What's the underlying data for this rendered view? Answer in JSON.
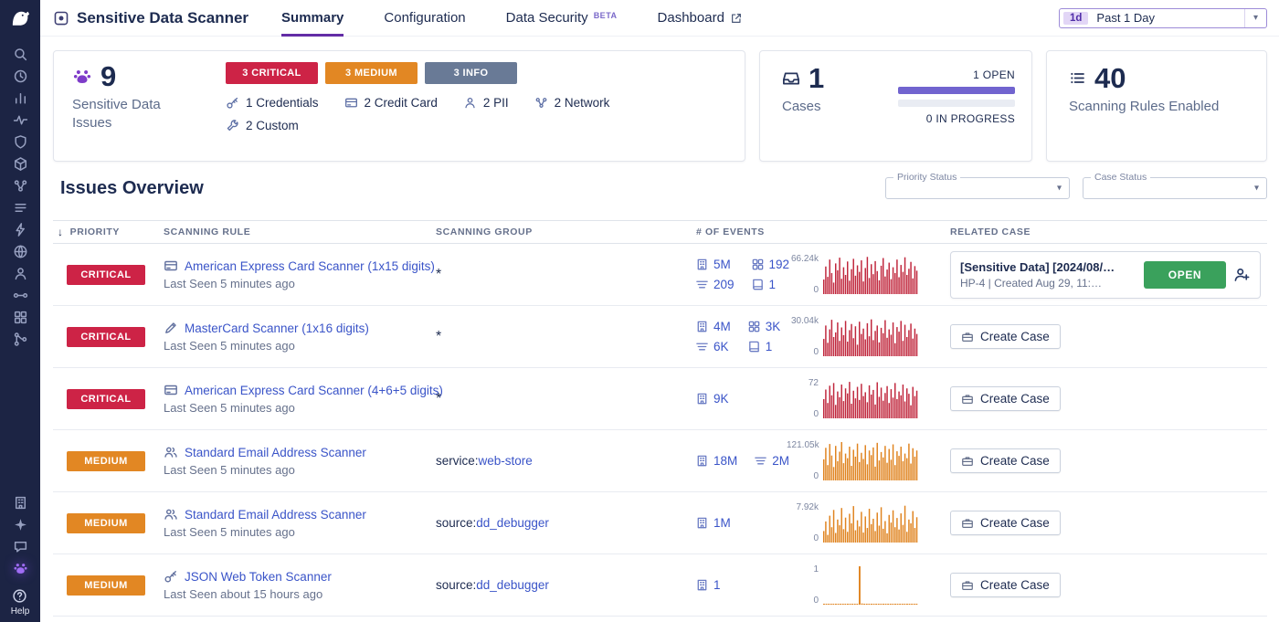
{
  "colors": {
    "brand_purple": "#632ca6",
    "sidebar_bg": "#1c2444",
    "critical": "#cd2346",
    "medium": "#e28723",
    "info": "#697a96",
    "link_blue": "#3a54c8",
    "open_green": "#3aa15c",
    "case_open_bar": "#7164cf"
  },
  "sidebar": {
    "main_icons": [
      {
        "name": "search",
        "glyph": "search"
      },
      {
        "name": "history",
        "glyph": "clock"
      },
      {
        "name": "metrics",
        "glyph": "bars"
      },
      {
        "name": "watchdog",
        "glyph": "pulse"
      },
      {
        "name": "security",
        "glyph": "shield"
      },
      {
        "name": "infrastructure",
        "glyph": "cube"
      },
      {
        "name": "network",
        "glyph": "dots"
      },
      {
        "name": "logs",
        "glyph": "lines"
      },
      {
        "name": "apm",
        "glyph": "bolt"
      },
      {
        "name": "synthetics",
        "glyph": "globe"
      },
      {
        "name": "rum",
        "glyph": "person"
      },
      {
        "name": "ci-pipelines",
        "glyph": "pipeline"
      },
      {
        "name": "integrations",
        "glyph": "grid"
      },
      {
        "name": "workflows",
        "glyph": "branch"
      }
    ],
    "bottom_icons": [
      {
        "name": "organization",
        "glyph": "building"
      },
      {
        "name": "bits-ai",
        "glyph": "sparkle"
      },
      {
        "name": "support-chat",
        "glyph": "chat"
      },
      {
        "name": "sensitive-data-scanner",
        "glyph": "paw",
        "active": true
      }
    ],
    "help_label": "Help"
  },
  "topnav": {
    "app_title": "Sensitive Data Scanner",
    "tabs": [
      {
        "label": "Summary"
      },
      {
        "label": "Configuration"
      },
      {
        "label": "Data Security",
        "badge": "BETA"
      },
      {
        "label": "Dashboard"
      }
    ],
    "time_picker": {
      "shortcut": "1d",
      "label": "Past 1 Day"
    }
  },
  "cards": {
    "issues": {
      "count": "9",
      "label": "Sensitive Data Issues",
      "severities": [
        {
          "label": "3 CRITICAL",
          "color": "#cd2346"
        },
        {
          "label": "3 MEDIUM",
          "color": "#e28723"
        },
        {
          "label": "3 INFO",
          "color": "#697a96"
        }
      ],
      "categories": [
        {
          "icon": "key",
          "label": "1 Credentials"
        },
        {
          "icon": "creditcard",
          "label": "2 Credit Card"
        },
        {
          "icon": "person",
          "label": "2 PII"
        },
        {
          "icon": "dots",
          "label": "2 Network"
        },
        {
          "icon": "wrench",
          "label": "2 Custom"
        }
      ]
    },
    "cases": {
      "count": "1",
      "label": "Cases",
      "open_label": "1 OPEN",
      "open_pct": 100,
      "progress_label": "0 IN PROGRESS",
      "progress_pct": 0
    },
    "rules": {
      "count": "40",
      "label": "Scanning Rules Enabled"
    }
  },
  "overview": {
    "title": "Issues Overview",
    "filters": [
      {
        "label": "Priority Status"
      },
      {
        "label": "Case Status"
      }
    ]
  },
  "table": {
    "columns": [
      "PRIORITY",
      "SCANNING RULE",
      "SCANNING GROUP",
      "# OF EVENTS",
      "RELATED CASE"
    ],
    "create_case_label": "Create Case",
    "rows": [
      {
        "priority": "CRITICAL",
        "priority_color": "#cd2346",
        "rule_name": "American Express Card Scanner (1x15 digits)",
        "last_seen": "Last Seen 5 minutes ago",
        "group": {
          "type": "wildcard",
          "text": "*"
        },
        "events": [
          {
            "icon": "building",
            "value": "5M"
          },
          {
            "icon": "grid",
            "value": "192"
          },
          {
            "icon": "stream",
            "value": "209"
          },
          {
            "icon": "book",
            "value": "1"
          }
        ],
        "spark": {
          "color": "#c0263c",
          "max_label": "66.24k",
          "min_label": "0",
          "values": [
            38,
            72,
            45,
            90,
            55,
            30,
            80,
            62,
            95,
            40,
            70,
            50,
            85,
            35,
            65,
            92,
            48,
            75,
            58,
            88,
            33,
            68,
            97,
            42,
            78,
            52,
            86,
            60,
            36,
            74,
            94,
            46,
            64,
            82,
            39,
            70,
            55,
            90,
            44,
            76,
            58,
            96,
            50,
            66,
            84,
            41,
            73,
            61
          ]
        },
        "case": {
          "title": "[Sensitive Data] [2024/08/…",
          "subtitle": "HP-4 | Created Aug 29, 11:…",
          "status_label": "OPEN"
        }
      },
      {
        "priority": "CRITICAL",
        "priority_color": "#cd2346",
        "rule_name": "MasterCard Scanner (1x16 digits)",
        "last_seen": "Last Seen 5 minutes ago",
        "group": {
          "type": "wildcard",
          "text": "*"
        },
        "events": [
          {
            "icon": "building",
            "value": "4M"
          },
          {
            "icon": "grid",
            "value": "3K"
          },
          {
            "icon": "stream",
            "value": "6K"
          },
          {
            "icon": "book",
            "value": "1"
          }
        ],
        "spark": {
          "color": "#c0263c",
          "max_label": "30.04k",
          "min_label": "0",
          "values": [
            45,
            80,
            35,
            70,
            95,
            50,
            62,
            88,
            40,
            75,
            55,
            92,
            38,
            68,
            84,
            47,
            78,
            30,
            90,
            58,
            72,
            44,
            86,
            52,
            96,
            42,
            66,
            80,
            36,
            74,
            60,
            94,
            48,
            70,
            56,
            88,
            34,
            76,
            64,
            92,
            40,
            82,
            50,
            68,
            85,
            46,
            72,
            58
          ]
        }
      },
      {
        "priority": "CRITICAL",
        "priority_color": "#cd2346",
        "rule_name": "American Express Card Scanner (4+6+5 digits)",
        "last_seen": "Last Seen 5 minutes ago",
        "group": {
          "type": "wildcard",
          "text": "*"
        },
        "events": [
          {
            "icon": "building",
            "value": "9K"
          }
        ],
        "spark": {
          "color": "#c0263c",
          "max_label": "72",
          "min_label": "0",
          "values": [
            50,
            75,
            40,
            85,
            60,
            92,
            35,
            70,
            55,
            88,
            45,
            78,
            65,
            95,
            38,
            72,
            52,
            82,
            48,
            90,
            58,
            68,
            42,
            86,
            62,
            74,
            36,
            94,
            56,
            80,
            46,
            66,
            84,
            40,
            76,
            54,
            92,
            50,
            70,
            60,
            88,
            44,
            78,
            64,
            34,
            82,
            58,
            72
          ]
        }
      },
      {
        "priority": "MEDIUM",
        "priority_color": "#e28723",
        "rule_name": "Standard Email Address Scanner",
        "last_seen": "Last Seen 5 minutes ago",
        "group": {
          "type": "tag",
          "prefix": "service:",
          "link": "web-store"
        },
        "events": [
          {
            "icon": "building",
            "value": "18M"
          },
          {
            "icon": "stream",
            "value": "2M"
          }
        ],
        "spark": {
          "color": "#e0831f",
          "max_label": "121.05k",
          "min_label": "0",
          "values": [
            55,
            85,
            40,
            95,
            65,
            35,
            90,
            50,
            75,
            100,
            45,
            70,
            58,
            88,
            38,
            80,
            62,
            96,
            48,
            72,
            56,
            92,
            42,
            78,
            66,
            86,
            36,
            98,
            52,
            74,
            60,
            90,
            46,
            82,
            54,
            94,
            40,
            76,
            64,
            88,
            50,
            70,
            58,
            96,
            44,
            84,
            62,
            78
          ]
        }
      },
      {
        "priority": "MEDIUM",
        "priority_color": "#e28723",
        "rule_name": "Standard Email Address Scanner",
        "last_seen": "Last Seen 5 minutes ago",
        "group": {
          "type": "tag",
          "prefix": "source:",
          "link": "dd_debugger"
        },
        "events": [
          {
            "icon": "building",
            "value": "1M"
          }
        ],
        "spark": {
          "color": "#e0831f",
          "max_label": "7.92k",
          "min_label": "0",
          "values": [
            30,
            55,
            20,
            70,
            40,
            85,
            25,
            60,
            45,
            90,
            35,
            65,
            28,
            75,
            50,
            95,
            32,
            58,
            42,
            80,
            26,
            68,
            38,
            88,
            48,
            62,
            30,
            78,
            44,
            92,
            36,
            56,
            24,
            72,
            52,
            84,
            40,
            64,
            34,
            76,
            46,
            96,
            28,
            60,
            50,
            82,
            38,
            66
          ]
        }
      },
      {
        "priority": "MEDIUM",
        "priority_color": "#e28723",
        "rule_name": "JSON Web Token Scanner",
        "last_seen": "Last Seen about 15 hours ago",
        "group": {
          "type": "tag",
          "prefix": "source:",
          "link": "dd_debugger"
        },
        "events": [
          {
            "icon": "building",
            "value": "1"
          }
        ],
        "spark": {
          "color": "#e0831f",
          "max_label": "1",
          "min_label": "0",
          "values": [
            2,
            2,
            2,
            2,
            2,
            2,
            2,
            2,
            2,
            2,
            2,
            2,
            2,
            2,
            2,
            100,
            3,
            2,
            2,
            2,
            2,
            2,
            2,
            2,
            2,
            2,
            2,
            2,
            2,
            2,
            2,
            2,
            2,
            2,
            2,
            2,
            2,
            2,
            2,
            2
          ]
        }
      }
    ]
  }
}
